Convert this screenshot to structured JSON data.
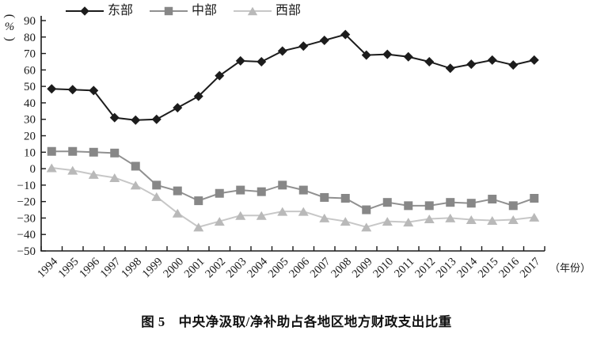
{
  "figure": {
    "caption": "图 5　中央净汲取/净补助占各地区地方财政支出比重",
    "y_axis_unit": "(%)",
    "x_axis_unit": "（年份）"
  },
  "chart_data": {
    "type": "line",
    "title": "图 5 中央净汲取/净补助占各地区地方财政支出比重",
    "xlabel": "（年份）",
    "ylabel": "(%)",
    "ylim": [
      -50,
      90
    ],
    "y_tick_step": 10,
    "grid": false,
    "legend_position": "top",
    "categories": [
      "1994",
      "1995",
      "1996",
      "1997",
      "1998",
      "1999",
      "2000",
      "2001",
      "2002",
      "2003",
      "2004",
      "2005",
      "2006",
      "2007",
      "2008",
      "2009",
      "2010",
      "2011",
      "2012",
      "2013",
      "2014",
      "2015",
      "2016",
      "2017"
    ],
    "series": [
      {
        "id": "east",
        "name": "东部",
        "marker": "diamond",
        "color": "#1c1c1c",
        "line_color": "#1c1c1c",
        "values": [
          48.5,
          48,
          47.5,
          31,
          29.5,
          30,
          37,
          44,
          56.5,
          65.5,
          65,
          71.5,
          74.5,
          78,
          81.5,
          69,
          69.5,
          68,
          65,
          61,
          63.5,
          66,
          63,
          66
        ]
      },
      {
        "id": "central",
        "name": "中部",
        "marker": "square",
        "color": "#878787",
        "line_color": "#909090",
        "values": [
          10.5,
          10.5,
          10,
          9.5,
          1.5,
          -10,
          -13.5,
          -19.5,
          -15,
          -13,
          -14,
          -10,
          -13,
          -17.5,
          -18,
          -25,
          -20.5,
          -22.5,
          -22.5,
          -20.5,
          -21,
          -18.5,
          -22.5,
          -18
        ]
      },
      {
        "id": "west",
        "name": "西部",
        "marker": "triangle",
        "color": "#b9b9b9",
        "line_color": "#c7c7c7",
        "values": [
          0.5,
          -1,
          -3.5,
          -5.5,
          -10,
          -17,
          -27,
          -35.5,
          -32,
          -28.5,
          -28.5,
          -26,
          -26,
          -30,
          -32,
          -35.5,
          -32,
          -32.5,
          -30.5,
          -30,
          -31,
          -31.5,
          -31,
          -29.5
        ]
      }
    ]
  }
}
